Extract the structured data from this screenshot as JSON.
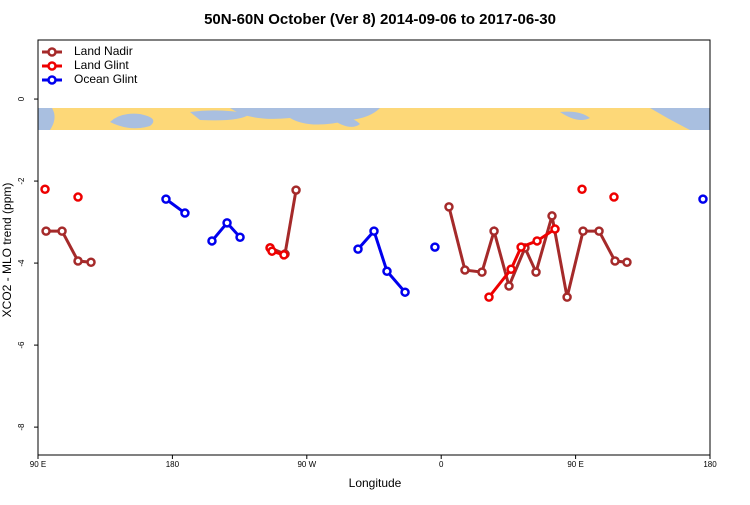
{
  "chart_data": {
    "type": "line",
    "title": "50N-60N October (Ver 8)   2014-09-06 to 2017-06-30",
    "x_label": "Longitude",
    "y_label": "XCO2 - MLO trend (ppm)",
    "xlim": [
      90,
      540
    ],
    "ylim": [
      -8.68,
      1.44
    ],
    "xticks": [
      {
        "value": 90,
        "label": "90 E"
      },
      180,
      {
        "value": 270,
        "label": "90 W"
      },
      {
        "value": 360,
        "label": "0"
      },
      {
        "value": 450,
        "label": "90 E"
      },
      {
        "value": 540,
        "label": "180"
      }
    ],
    "yticks": [
      0,
      -2,
      -4,
      -6,
      -8
    ],
    "legend": "top-left",
    "series": [
      {
        "name": "Land Nadir",
        "color": "#a52a2a",
        "x": [
          95.4,
          106.1,
          116.8,
          125.5,
          null,
          245.4,
          255.4,
          262.8,
          null,
          365.2,
          375.9,
          387.3,
          395.4,
          405.4,
          416.1,
          423.5,
          434.2,
          444.3,
          455,
          465.7,
          476.4,
          484.4
        ],
        "values": [
          -3.22,
          -3.22,
          -3.95,
          -3.98,
          null,
          -3.63,
          -3.78,
          -2.22,
          null,
          -2.63,
          -4.17,
          -4.22,
          -3.22,
          -4.56,
          -3.63,
          -4.22,
          -2.85,
          -4.83,
          -3.22,
          -3.22,
          -3.95,
          -3.98
        ]
      },
      {
        "name": "Land Glint",
        "color": "#ee0000",
        "x": [
          94.7,
          null,
          116.8,
          null,
          245.4,
          246.7,
          254.7,
          null,
          392,
          406.8,
          413.5,
          424.2,
          436.2,
          null,
          454.3,
          null,
          475.7
        ],
        "values": [
          -2.2,
          null,
          -2.39,
          null,
          -3.63,
          -3.71,
          -3.8,
          null,
          -4.83,
          -4.15,
          -3.61,
          -3.46,
          -3.17,
          null,
          -2.2,
          null,
          -2.39
        ]
      },
      {
        "name": "Ocean Glint",
        "color": "#0000ee",
        "x": [
          175.7,
          188.4,
          null,
          206.5,
          216.6,
          225.3,
          null,
          304.3,
          315,
          323.7,
          335.8,
          null,
          355.8,
          null,
          535.3
        ],
        "values": [
          -2.44,
          -2.78,
          null,
          -3.46,
          -3.02,
          -3.37,
          null,
          -3.66,
          -3.22,
          -4.2,
          -4.71,
          null,
          -3.61,
          null,
          -2.44
        ]
      }
    ]
  }
}
